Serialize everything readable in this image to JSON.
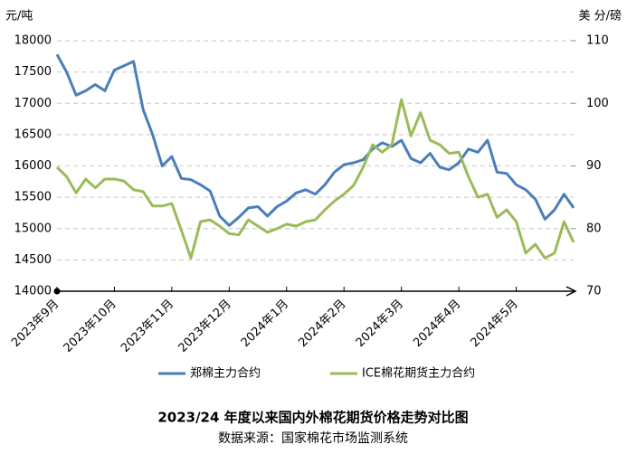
{
  "chart_data": {
    "type": "line",
    "title": "2023/24 年度以来国内外棉花期货价格走势对比图",
    "subtitle": "数据来源：国家棉花市场监测系统",
    "y_axis_label": "元/吨",
    "y2_axis_label": "美 分/磅",
    "categories": [
      "2023年9月",
      null,
      null,
      null,
      null,
      null,
      "2023年10月",
      null,
      null,
      null,
      null,
      null,
      "2023年11月",
      null,
      null,
      null,
      null,
      null,
      "2023年12月",
      null,
      null,
      null,
      null,
      null,
      "2024年1月",
      null,
      null,
      null,
      null,
      null,
      "2024年2月",
      null,
      null,
      null,
      null,
      null,
      "2024年3月",
      null,
      null,
      null,
      null,
      null,
      "2024年4月",
      null,
      null,
      null,
      null,
      null,
      "2024年5月",
      null,
      null,
      null,
      null,
      null,
      null
    ],
    "series": [
      {
        "name": "郑棉主力合约",
        "color": "#4a7ebb",
        "axis": "y",
        "values": [
          17780,
          17500,
          17130,
          17200,
          17300,
          17200,
          17530,
          17600,
          17670,
          16900,
          16500,
          16000,
          16150,
          15800,
          15780,
          15700,
          15600,
          15200,
          15050,
          15180,
          15330,
          15350,
          15200,
          15350,
          15440,
          15570,
          15620,
          15550,
          15700,
          15900,
          16020,
          16050,
          16100,
          16270,
          16370,
          16310,
          16410,
          16120,
          16050,
          16200,
          15980,
          15940,
          16050,
          16270,
          16220,
          16410,
          15900,
          15880,
          15700,
          15620,
          15470,
          15150,
          15300,
          15550,
          15330
        ]
      },
      {
        "name": "ICE棉花期货主力合约",
        "color": "#9bbb59",
        "axis": "y2",
        "values": [
          89.8,
          88.3,
          85.7,
          87.9,
          86.5,
          87.9,
          87.9,
          87.6,
          86.2,
          85.9,
          83.6,
          83.6,
          84.0,
          79.7,
          75.3,
          81.1,
          81.4,
          80.4,
          79.2,
          79.0,
          81.4,
          80.4,
          79.4,
          80.0,
          80.7,
          80.4,
          81.1,
          81.4,
          83.0,
          84.4,
          85.5,
          86.9,
          89.8,
          93.4,
          92.2,
          93.4,
          100.6,
          94.8,
          98.5,
          94.1,
          93.4,
          92.0,
          92.2,
          88.3,
          85.0,
          85.5,
          81.8,
          83.0,
          81.1,
          76.1,
          77.5,
          75.3,
          76.1,
          81.1,
          77.8
        ]
      }
    ],
    "ylim": [
      14000,
      18000
    ],
    "yticks": [
      14000,
      14500,
      15000,
      15500,
      16000,
      16500,
      17000,
      17500,
      18000
    ],
    "y2lim": [
      70,
      110
    ],
    "y2ticks": [
      70,
      80,
      90,
      100,
      110
    ],
    "grid": true,
    "legend": "bottom"
  }
}
